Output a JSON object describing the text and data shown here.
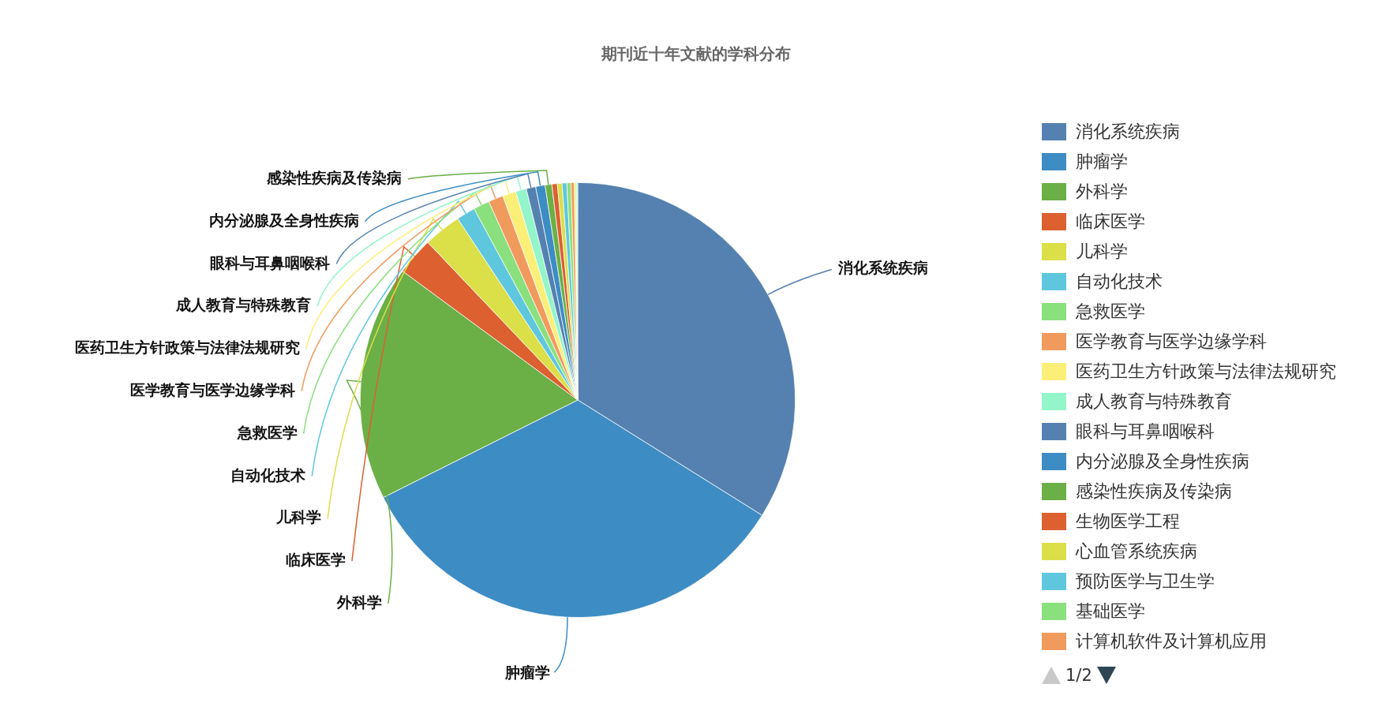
{
  "chart_data": {
    "type": "pie",
    "title": "期刊近十年文献的学科分布",
    "categories": [
      "消化系统疾病",
      "肿瘤学",
      "外科学",
      "临床医学",
      "儿科学",
      "自动化技术",
      "急救医学",
      "医学教育与医学边缘学科",
      "医药卫生方针政策与法律法规研究",
      "成人教育与特殊教育",
      "眼科与耳鼻咽喉科",
      "内分泌腺及全身性疾病",
      "感染性疾病及传染病",
      "生物医学工程",
      "心血管系统疾病",
      "预防医学与卫生学",
      "基础医学",
      "计算机软件及计算机应用",
      null,
      null
    ],
    "values": [
      33.9,
      33.7,
      17.5,
      2.8,
      2.8,
      1.4,
      1.2,
      1.1,
      1.0,
      0.8,
      0.7,
      0.7,
      0.5,
      0.4,
      0.35,
      0.35,
      0.3,
      0.25,
      0.15,
      0.1
    ],
    "colors": [
      "#5581b0",
      "#3d8cc4",
      "#6ab046",
      "#dc6030",
      "#dbdf48",
      "#5ec7de",
      "#89e07c",
      "#f19a5e",
      "#fbef77",
      "#93f5c9",
      "#5581b0",
      "#3d8cc4",
      "#6ab046",
      "#dc6030",
      "#dbdf48",
      "#5ec7de",
      "#89e07c",
      "#f19a5e",
      "#fbef77",
      "#93f5c9"
    ],
    "legend": "right",
    "annotations": [
      "1/2"
    ]
  }
}
